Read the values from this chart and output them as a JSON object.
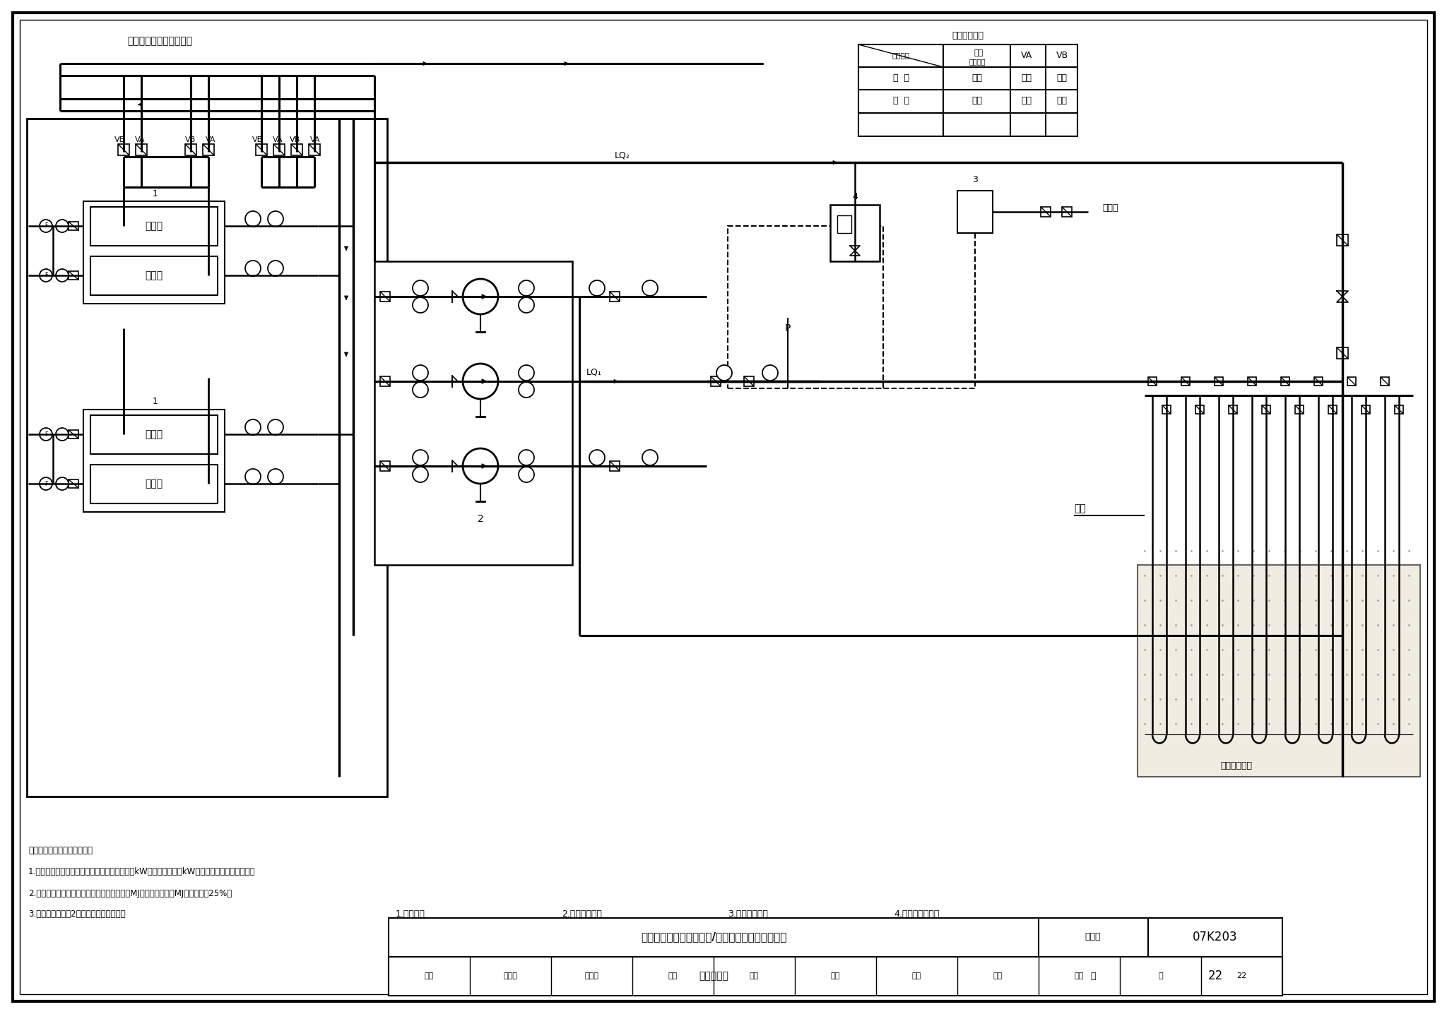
{
  "title_main": "埋管式地源热泵空调冷却/热源水系统原理图（一）",
  "title_sub": "不设冷却塔",
  "drawing_number": "07K203",
  "page": "22",
  "bg_color": "#ffffff",
  "notes": [
    "注：本系统形式适用条件为：",
    "1.设计日工况下，埋管换热器承担的放热负荷（kW）与取热负荷（kW）均能满足空调系统需求。",
    "2.埋管换热器在年周期内向土壤的总排热量（MJ）与总取热量（MJ）相差小于25%。",
    "3.当机组台数多于2台时，应取消备用泵。"
  ],
  "legend_items": [
    "1.冷水机组",
    "2.冷却水循环泵",
    "3.补水定压装置",
    "4.自动水处理装置"
  ],
  "table_title": "工况转换说明",
  "top_label": "接用户侧空调循环水系统",
  "lq1_label": "LQ₁",
  "lq2_label": "LQ₂",
  "ground_label": "地源",
  "tap_water_label": "自来水",
  "exchanger_label": "地埋管换热器"
}
